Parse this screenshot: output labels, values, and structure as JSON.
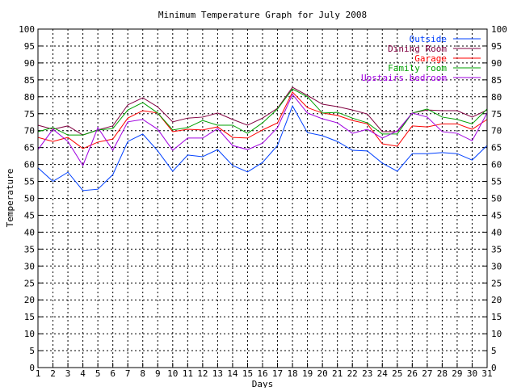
{
  "chart_data": {
    "type": "line",
    "title": "Minimum Temperature Graph for July 2008",
    "xlabel": "Days",
    "ylabel": "Temperature",
    "xlim": [
      1,
      31
    ],
    "ylim": [
      0,
      100
    ],
    "ytick_step": 5,
    "grid": true,
    "legend_position": "top-right",
    "x": [
      1,
      2,
      3,
      4,
      5,
      6,
      7,
      8,
      9,
      10,
      11,
      12,
      13,
      14,
      15,
      16,
      17,
      18,
      19,
      20,
      21,
      22,
      23,
      24,
      25,
      26,
      27,
      28,
      29,
      30,
      31
    ],
    "series": [
      {
        "name": "Outside",
        "color": "#0040ff",
        "values": [
          59,
          55,
          57.7,
          52.3,
          52.7,
          57,
          66.8,
          69,
          64,
          58,
          62.8,
          62.3,
          64.4,
          59.7,
          57.8,
          60.6,
          65.6,
          77.3,
          69.4,
          68.5,
          66.8,
          64.2,
          64,
          60.4,
          58,
          63.2,
          63.2,
          63.5,
          63.2,
          61.3,
          65.6
        ]
      },
      {
        "name": "Dining Room",
        "color": "#800040",
        "values": [
          71.6,
          70.4,
          71.4,
          68.7,
          70.2,
          71.4,
          77.6,
          79.7,
          77,
          72.6,
          73.7,
          74,
          75.2,
          73.3,
          71.6,
          73.7,
          76.6,
          82.8,
          80.4,
          77.8,
          77.1,
          76.1,
          74.9,
          69.7,
          69.7,
          75.2,
          76.1,
          75.9,
          75.9,
          74,
          76.1
        ]
      },
      {
        "name": "Garage",
        "color": "#ff0000",
        "values": [
          68,
          66.8,
          68,
          64.7,
          66.6,
          67.5,
          73.7,
          75.9,
          75.2,
          69.7,
          70.4,
          70.2,
          71.1,
          68,
          67.8,
          70.2,
          72.3,
          81.4,
          76.8,
          75.2,
          74.5,
          73,
          72,
          66.1,
          65.4,
          71.4,
          71.1,
          72,
          72,
          70.4,
          73.3
        ]
      },
      {
        "name": "Family room",
        "color": "#00a000",
        "values": [
          69.7,
          70.9,
          68.7,
          68.7,
          70.2,
          70.6,
          76.1,
          78.3,
          75.2,
          70.2,
          70.9,
          73,
          71.6,
          71.6,
          69.2,
          72.3,
          76.4,
          82.3,
          80,
          75.2,
          75.4,
          73.7,
          72.3,
          69,
          69,
          75.2,
          76.4,
          74,
          73.3,
          72,
          76.4
        ]
      },
      {
        "name": "Upstairs bedroom",
        "color": "#a000e0",
        "values": [
          64.4,
          70.4,
          66.8,
          59.7,
          70.9,
          64.2,
          72.6,
          73.3,
          70.4,
          64.2,
          67.8,
          67.8,
          70.6,
          65.6,
          64.4,
          66.3,
          70.9,
          80.7,
          75.2,
          73.5,
          72.3,
          69.2,
          70.4,
          67.8,
          69.9,
          75.2,
          74,
          69.7,
          69.2,
          67,
          75.2
        ]
      }
    ]
  }
}
